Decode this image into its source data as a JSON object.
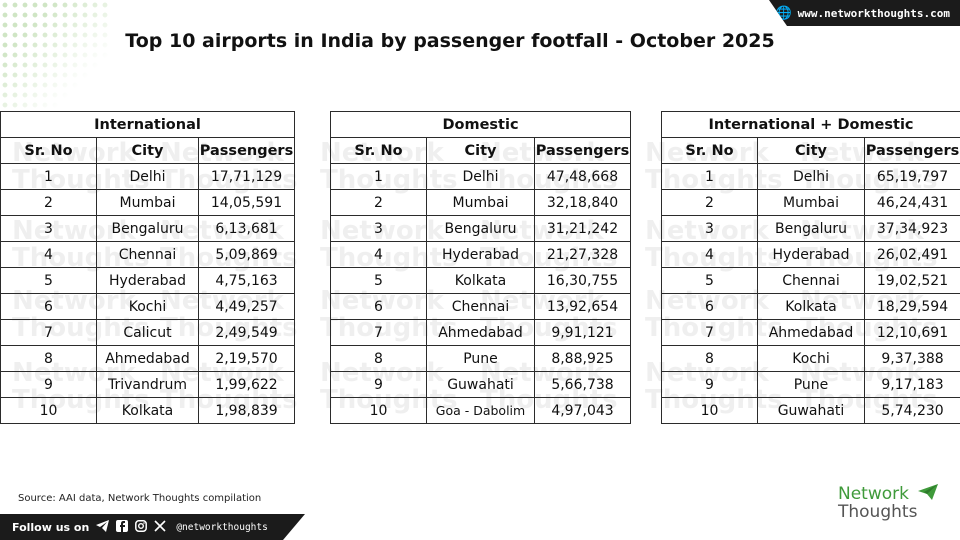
{
  "header": {
    "website": "www.networkthoughts.com",
    "globe_icon": "globe-icon"
  },
  "title": "Top 10 airports in India by passenger footfall - October 2025",
  "watermark": {
    "line1": "Network",
    "line2": "Thoughts"
  },
  "tables": [
    {
      "heading": "International",
      "columns": [
        "Sr. No",
        "City",
        "Passengers"
      ],
      "rows": [
        [
          "1",
          "Delhi",
          "17,71,129"
        ],
        [
          "2",
          "Mumbai",
          "14,05,591"
        ],
        [
          "3",
          "Bengaluru",
          "6,13,681"
        ],
        [
          "4",
          "Chennai",
          "5,09,869"
        ],
        [
          "5",
          "Hyderabad",
          "4,75,163"
        ],
        [
          "6",
          "Kochi",
          "4,49,257"
        ],
        [
          "7",
          "Calicut",
          "2,49,549"
        ],
        [
          "8",
          "Ahmedabad",
          "2,19,570"
        ],
        [
          "9",
          "Trivandrum",
          "1,99,622"
        ],
        [
          "10",
          "Kolkata",
          "1,98,839"
        ]
      ]
    },
    {
      "heading": "Domestic",
      "columns": [
        "Sr. No",
        "City",
        "Passengers"
      ],
      "rows": [
        [
          "1",
          "Delhi",
          "47,48,668"
        ],
        [
          "2",
          "Mumbai",
          "32,18,840"
        ],
        [
          "3",
          "Bengaluru",
          "31,21,242"
        ],
        [
          "4",
          "Hyderabad",
          "21,27,328"
        ],
        [
          "5",
          "Kolkata",
          "16,30,755"
        ],
        [
          "6",
          "Chennai",
          "13,92,654"
        ],
        [
          "7",
          "Ahmedabad",
          "9,91,121"
        ],
        [
          "8",
          "Pune",
          "8,88,925"
        ],
        [
          "9",
          "Guwahati",
          "5,66,738"
        ],
        [
          "10",
          "Goa - Dabolim",
          "4,97,043"
        ]
      ]
    },
    {
      "heading": "International + Domestic",
      "columns": [
        "Sr. No",
        "City",
        "Passengers"
      ],
      "rows": [
        [
          "1",
          "Delhi",
          "65,19,797"
        ],
        [
          "2",
          "Mumbai",
          "46,24,431"
        ],
        [
          "3",
          "Bengaluru",
          "37,34,923"
        ],
        [
          "4",
          "Hyderabad",
          "26,02,491"
        ],
        [
          "5",
          "Chennai",
          "19,02,521"
        ],
        [
          "6",
          "Kolkata",
          "18,29,594"
        ],
        [
          "7",
          "Ahmedabad",
          "12,10,691"
        ],
        [
          "8",
          "Kochi",
          "9,37,388"
        ],
        [
          "9",
          "Pune",
          "9,17,183"
        ],
        [
          "10",
          "Guwahati",
          "5,74,230"
        ]
      ]
    }
  ],
  "source": "Source: AAI data, Network Thoughts compilation",
  "footer": {
    "follow_label": "Follow us on",
    "social_icons": [
      "telegram-icon",
      "facebook-icon",
      "instagram-icon",
      "x-icon"
    ],
    "handle": "@networkthoughts"
  },
  "logo": {
    "line1": "Network",
    "line2": "Thoughts"
  },
  "colors": {
    "brand_green": "#3f9a3a",
    "dark": "#1b1b1b"
  }
}
